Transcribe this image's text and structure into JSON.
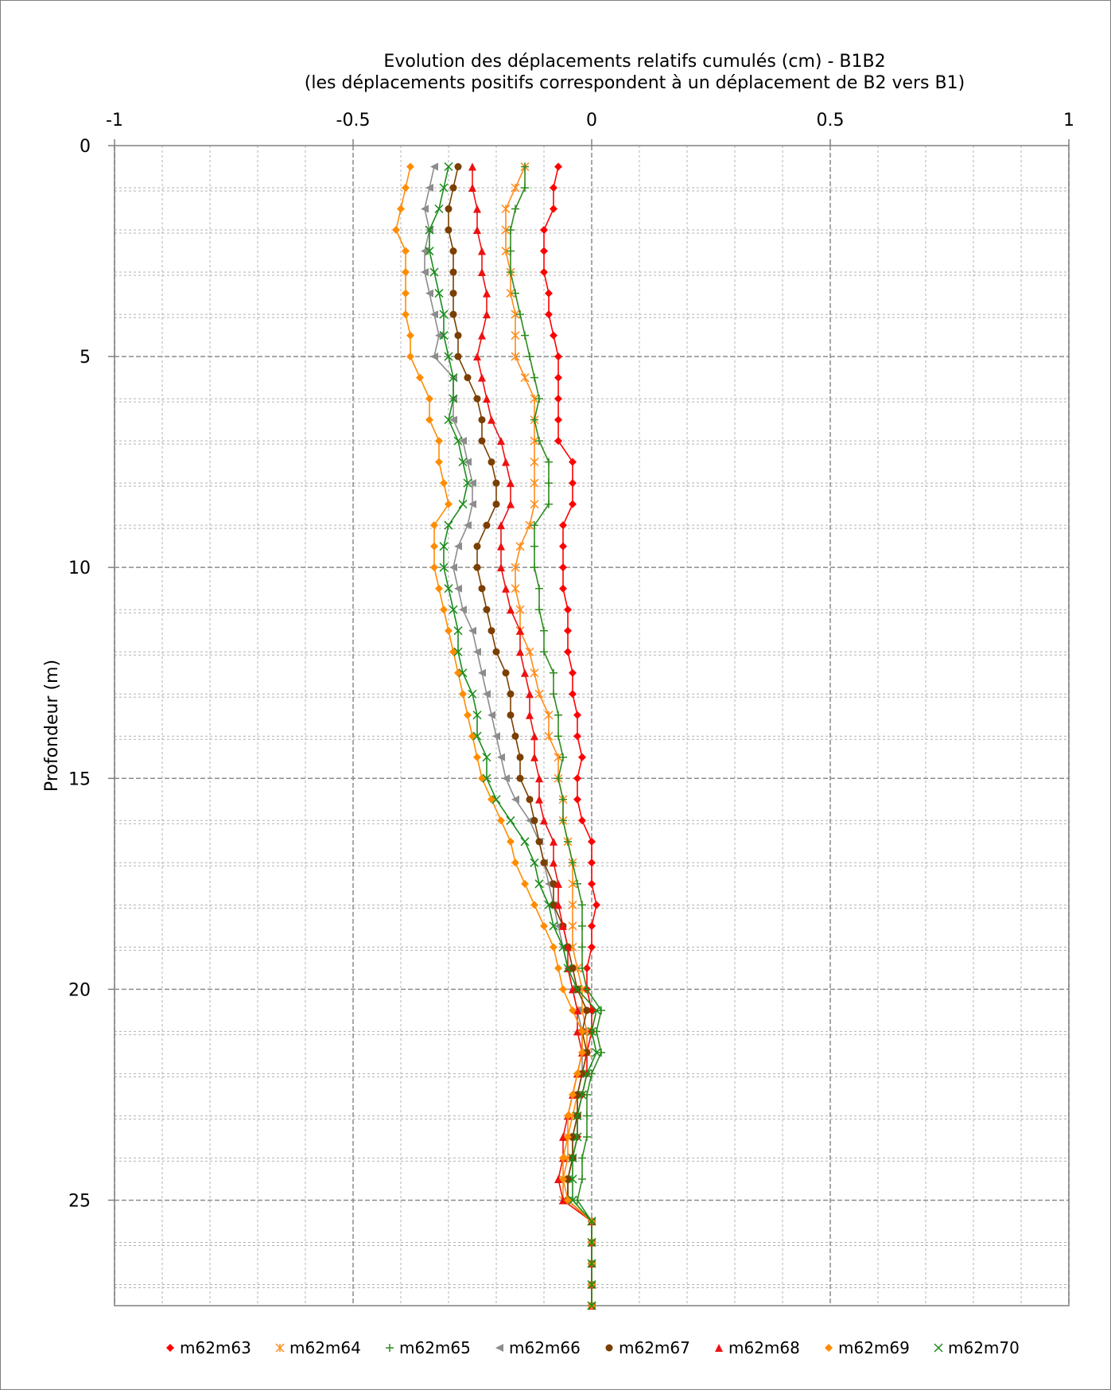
{
  "chart_data": {
    "type": "line",
    "title": "Evolution des déplacements relatifs cumulés (cm) - B1B2",
    "subtitle": "(les déplacements positifs correspondent à un déplacement de B2 vers B1)",
    "ylabel": "Profondeur (m)",
    "xlim": [
      -1,
      1
    ],
    "ylim": [
      0,
      27.5
    ],
    "y_inverted": true,
    "x_axis_position": "top",
    "x_ticks": [
      -1,
      -0.5,
      0,
      0.5,
      1
    ],
    "x_tick_labels": [
      "-1",
      "-0.5",
      "0",
      "0.5",
      "1"
    ],
    "y_ticks": [
      0,
      5,
      10,
      15,
      20,
      25
    ],
    "y_tick_labels": [
      "0",
      "5",
      "10",
      "15",
      "20",
      "25"
    ],
    "grid": true,
    "legend_position": "bottom",
    "depths": [
      0.5,
      1,
      1.5,
      2,
      2.5,
      3,
      3.5,
      4,
      4.5,
      5,
      5.5,
      6,
      6.5,
      7,
      7.5,
      8,
      8.5,
      9,
      9.5,
      10,
      10.5,
      11,
      11.5,
      12,
      12.5,
      13,
      13.5,
      14,
      14.5,
      15,
      15.5,
      16,
      16.5,
      17,
      17.5,
      18,
      18.5,
      19,
      19.5,
      20,
      20.5,
      21,
      21.5,
      22,
      22.5,
      23,
      23.5,
      24,
      24.5,
      25,
      25.5,
      26,
      26.5,
      27,
      27.5
    ],
    "series": [
      {
        "name": "m62m63",
        "color": "#ff0000",
        "marker": "diamond",
        "values": [
          -0.07,
          -0.08,
          -0.08,
          -0.1,
          -0.1,
          -0.1,
          -0.09,
          -0.09,
          -0.08,
          -0.07,
          -0.07,
          -0.07,
          -0.07,
          -0.07,
          -0.04,
          -0.04,
          -0.04,
          -0.06,
          -0.06,
          -0.06,
          -0.06,
          -0.05,
          -0.05,
          -0.05,
          -0.04,
          -0.04,
          -0.03,
          -0.03,
          -0.02,
          -0.03,
          -0.03,
          -0.02,
          0.0,
          0.0,
          0.0,
          0.01,
          0.0,
          0.0,
          -0.01,
          -0.01,
          0.0,
          0.0,
          -0.01,
          -0.01,
          -0.02,
          -0.03,
          -0.03,
          -0.04,
          -0.05,
          -0.05,
          0.0,
          0.0,
          0.0,
          0.0,
          0.0
        ]
      },
      {
        "name": "m62m64",
        "color": "#ff8c1a",
        "marker": "asterisk",
        "values": [
          -0.14,
          -0.16,
          -0.18,
          -0.18,
          -0.18,
          -0.17,
          -0.17,
          -0.16,
          -0.16,
          -0.16,
          -0.14,
          -0.12,
          -0.12,
          -0.12,
          -0.12,
          -0.12,
          -0.12,
          -0.13,
          -0.15,
          -0.16,
          -0.16,
          -0.15,
          -0.15,
          -0.13,
          -0.12,
          -0.11,
          -0.09,
          -0.09,
          -0.07,
          -0.07,
          -0.06,
          -0.06,
          -0.05,
          -0.04,
          -0.04,
          -0.04,
          -0.04,
          -0.04,
          -0.03,
          -0.02,
          -0.02,
          -0.01,
          -0.01,
          -0.02,
          -0.03,
          -0.04,
          -0.05,
          -0.05,
          -0.06,
          -0.06,
          0.0,
          0.0,
          0.0,
          0.0,
          0.0
        ]
      },
      {
        "name": "m62m65",
        "color": "#2e8b1e",
        "marker": "plus",
        "values": [
          -0.14,
          -0.14,
          -0.16,
          -0.17,
          -0.17,
          -0.17,
          -0.16,
          -0.15,
          -0.14,
          -0.13,
          -0.12,
          -0.11,
          -0.12,
          -0.11,
          -0.09,
          -0.09,
          -0.09,
          -0.12,
          -0.12,
          -0.12,
          -0.11,
          -0.11,
          -0.1,
          -0.1,
          -0.08,
          -0.08,
          -0.07,
          -0.07,
          -0.06,
          -0.07,
          -0.06,
          -0.06,
          -0.05,
          -0.04,
          -0.03,
          -0.02,
          -0.02,
          -0.02,
          -0.02,
          -0.01,
          0.02,
          0.01,
          0.02,
          0.0,
          -0.01,
          -0.01,
          -0.01,
          -0.02,
          -0.02,
          -0.03,
          0.0,
          0.0,
          0.0,
          0.0,
          0.0
        ]
      },
      {
        "name": "m62m66",
        "color": "#8c8c8c",
        "marker": "triangle-left",
        "values": [
          -0.33,
          -0.34,
          -0.35,
          -0.34,
          -0.35,
          -0.35,
          -0.34,
          -0.33,
          -0.32,
          -0.33,
          -0.29,
          -0.29,
          -0.29,
          -0.27,
          -0.26,
          -0.25,
          -0.25,
          -0.26,
          -0.28,
          -0.29,
          -0.28,
          -0.27,
          -0.25,
          -0.24,
          -0.23,
          -0.22,
          -0.21,
          -0.2,
          -0.19,
          -0.18,
          -0.16,
          -0.13,
          -0.11,
          -0.1,
          -0.09,
          -0.08,
          -0.07,
          -0.06,
          -0.05,
          -0.04,
          -0.03,
          -0.02,
          -0.02,
          -0.02,
          -0.03,
          -0.03,
          -0.04,
          -0.04,
          -0.05,
          -0.05,
          0.0,
          0.0,
          0.0,
          0.0,
          0.0
        ]
      },
      {
        "name": "m62m67",
        "color": "#7b3f00",
        "marker": "circle",
        "values": [
          -0.28,
          -0.29,
          -0.3,
          -0.3,
          -0.29,
          -0.29,
          -0.29,
          -0.29,
          -0.28,
          -0.28,
          -0.26,
          -0.24,
          -0.23,
          -0.23,
          -0.21,
          -0.2,
          -0.2,
          -0.22,
          -0.24,
          -0.24,
          -0.23,
          -0.22,
          -0.21,
          -0.2,
          -0.18,
          -0.17,
          -0.17,
          -0.16,
          -0.15,
          -0.15,
          -0.13,
          -0.12,
          -0.11,
          -0.1,
          -0.08,
          -0.08,
          -0.06,
          -0.05,
          -0.04,
          -0.03,
          -0.01,
          -0.02,
          -0.01,
          -0.02,
          -0.03,
          -0.03,
          -0.04,
          -0.04,
          -0.05,
          -0.05,
          0.0,
          0.0,
          0.0,
          0.0,
          0.0
        ]
      },
      {
        "name": "m62m68",
        "color": "#ee1111",
        "marker": "triangle-up",
        "values": [
          -0.25,
          -0.25,
          -0.24,
          -0.24,
          -0.23,
          -0.23,
          -0.22,
          -0.22,
          -0.23,
          -0.24,
          -0.23,
          -0.22,
          -0.21,
          -0.19,
          -0.18,
          -0.17,
          -0.17,
          -0.19,
          -0.19,
          -0.19,
          -0.18,
          -0.17,
          -0.15,
          -0.15,
          -0.14,
          -0.13,
          -0.13,
          -0.12,
          -0.12,
          -0.11,
          -0.11,
          -0.1,
          -0.08,
          -0.08,
          -0.07,
          -0.07,
          -0.06,
          -0.05,
          -0.05,
          -0.04,
          -0.03,
          -0.03,
          -0.02,
          -0.03,
          -0.04,
          -0.05,
          -0.06,
          -0.06,
          -0.07,
          -0.06,
          0.0,
          0.0,
          0.0,
          0.0,
          0.0
        ]
      },
      {
        "name": "m62m69",
        "color": "#ff8c00",
        "marker": "diamond",
        "values": [
          -0.38,
          -0.39,
          -0.4,
          -0.41,
          -0.39,
          -0.39,
          -0.39,
          -0.39,
          -0.38,
          -0.38,
          -0.36,
          -0.34,
          -0.34,
          -0.32,
          -0.32,
          -0.31,
          -0.3,
          -0.33,
          -0.33,
          -0.33,
          -0.32,
          -0.31,
          -0.3,
          -0.29,
          -0.28,
          -0.27,
          -0.26,
          -0.25,
          -0.24,
          -0.23,
          -0.21,
          -0.19,
          -0.17,
          -0.16,
          -0.14,
          -0.12,
          -0.1,
          -0.08,
          -0.07,
          -0.06,
          -0.04,
          -0.02,
          -0.02,
          -0.03,
          -0.04,
          -0.05,
          -0.05,
          -0.06,
          -0.06,
          -0.05,
          0.0,
          0.0,
          0.0,
          0.0,
          0.0
        ]
      },
      {
        "name": "m62m70",
        "color": "#1a8c1a",
        "marker": "x",
        "values": [
          -0.3,
          -0.31,
          -0.32,
          -0.34,
          -0.34,
          -0.33,
          -0.32,
          -0.31,
          -0.31,
          -0.3,
          -0.29,
          -0.29,
          -0.3,
          -0.28,
          -0.27,
          -0.26,
          -0.27,
          -0.3,
          -0.31,
          -0.31,
          -0.3,
          -0.29,
          -0.28,
          -0.28,
          -0.27,
          -0.25,
          -0.24,
          -0.24,
          -0.22,
          -0.22,
          -0.2,
          -0.17,
          -0.14,
          -0.12,
          -0.11,
          -0.09,
          -0.08,
          -0.06,
          -0.05,
          -0.03,
          0.01,
          0.0,
          0.01,
          -0.01,
          -0.02,
          -0.03,
          -0.03,
          -0.04,
          -0.04,
          -0.04,
          0.0,
          0.0,
          0.0,
          0.0,
          0.0
        ]
      }
    ]
  }
}
